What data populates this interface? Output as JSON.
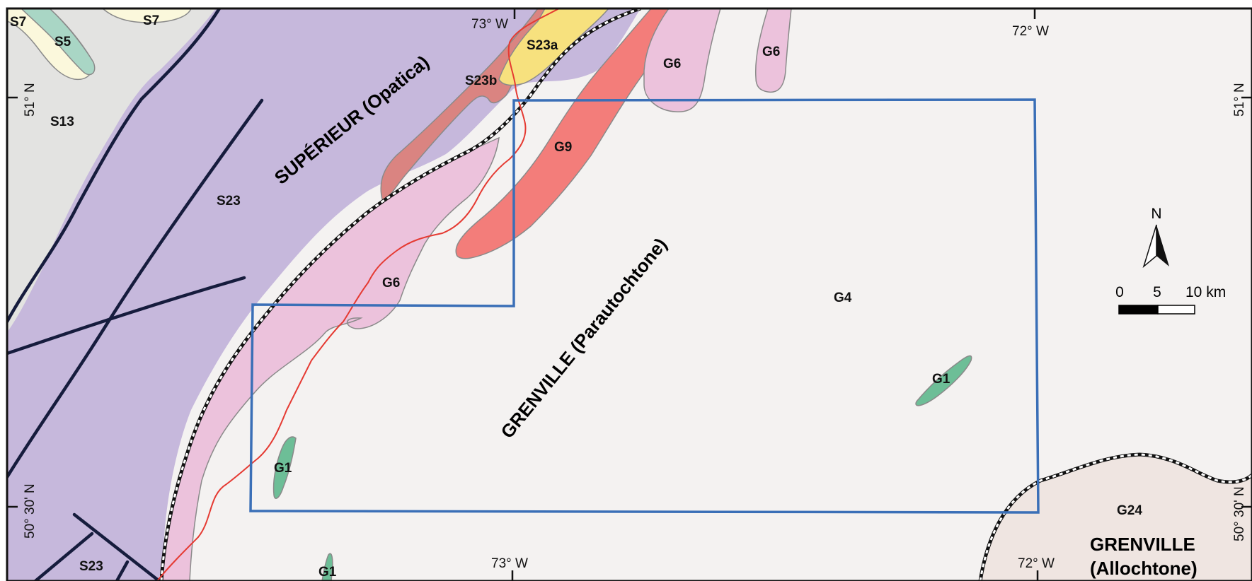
{
  "map": {
    "colors": {
      "superior": "#c6b8dc",
      "s13": "#e3e3e1",
      "grenville_para": "#f4f2f1",
      "grenville_allo": "#efe5e1",
      "g6": "#ecc2dc",
      "g9": "#f37d7a",
      "s23b": "#da8481",
      "s23a": "#f7e17e",
      "s5": "#a9d6c5",
      "s7": "#fbf8dc",
      "g1": "#6dbe97",
      "study_area": "#3a6fb7",
      "river": "#e53a32",
      "fault": "#161c3d"
    },
    "provinces": {
      "superior": "SUPÉRIEUR (Opatica)",
      "grenville_para": "GRENVILLE (Parautochtone)",
      "grenville_allo_line1": "GRENVILLE",
      "grenville_allo_line2": "(Allochtone)"
    },
    "units": {
      "s7_a": "S7",
      "s7_b": "S7",
      "s5": "S5",
      "s13": "S13",
      "s23_main": "S23",
      "s23_sw": "S23",
      "s23a": "S23a",
      "s23b": "S23b",
      "g6_north": "G6",
      "g6_ne": "G6",
      "g6_belt": "G6",
      "g9": "G9",
      "g4": "G4",
      "g1_east": "G1",
      "g1_west": "G1",
      "g1_south": "G1",
      "g24": "G24"
    },
    "graticule": {
      "lon_73_top": "73° W",
      "lon_72_top": "72° W",
      "lon_73_bottom": "73° W",
      "lon_72_bottom": "72° W",
      "lat_51_left": "51° N",
      "lat_51_right": "51° N",
      "lat_5030_left": "50° 30' N",
      "lat_5030_right": "50° 30' N"
    },
    "north_arrow": {
      "label": "N"
    },
    "scale_bar": {
      "tick_0": "0",
      "tick_5": "5",
      "tick_10": "10 km"
    }
  }
}
